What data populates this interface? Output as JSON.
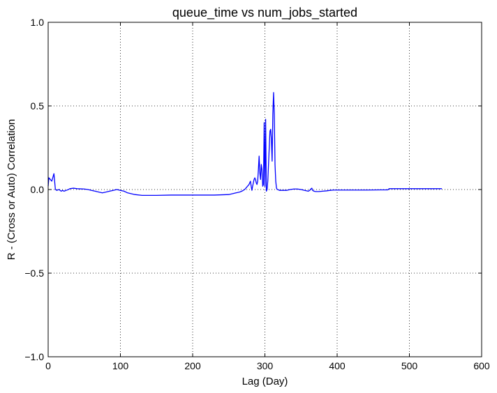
{
  "chart_data": {
    "type": "line",
    "title": "queue_time vs num_jobs_started",
    "xlabel": "Lag (Day)",
    "ylabel": "R - (Cross or Auto) Correlation",
    "xlim": [
      0,
      600
    ],
    "ylim": [
      -1.0,
      1.0
    ],
    "xticks": [
      0,
      100,
      200,
      300,
      400,
      500,
      600
    ],
    "xtick_labels": [
      "0",
      "100",
      "200",
      "300",
      "400",
      "500",
      "600"
    ],
    "yticks": [
      -1.0,
      -0.5,
      0.0,
      0.5,
      1.0
    ],
    "ytick_labels": [
      "−1.0",
      "−0.5",
      "0.0",
      "0.5",
      "1.0"
    ],
    "grid": true,
    "line_color": "#0000ff",
    "series": [
      {
        "x": [
          0,
          1,
          3,
          5,
          7,
          8,
          10,
          12,
          15,
          18,
          20,
          22,
          25,
          28,
          30,
          35,
          40,
          45,
          50,
          55,
          60,
          65,
          70,
          75,
          80,
          85,
          90,
          95,
          100,
          105,
          110,
          115,
          120,
          130,
          150,
          170,
          200,
          230,
          250,
          255,
          260,
          265,
          268,
          270,
          272,
          274,
          276,
          278,
          280,
          281,
          282,
          283,
          284,
          285,
          286,
          287,
          288,
          289,
          290,
          291,
          292,
          293,
          294,
          295,
          296,
          297,
          298,
          299,
          300,
          301,
          302,
          303,
          304,
          305,
          306,
          307,
          308,
          309,
          310,
          311,
          312,
          313,
          314,
          315,
          316,
          317,
          318,
          320,
          325,
          330,
          335,
          340,
          345,
          350,
          355,
          360,
          362,
          364,
          365,
          366,
          368,
          370,
          375,
          380,
          385,
          390,
          395,
          400,
          420,
          440,
          460,
          470,
          472,
          480,
          500,
          520,
          545
        ],
        "y": [
          0.02,
          0.07,
          0.06,
          0.05,
          0.08,
          0.095,
          0.0,
          -0.005,
          0.0,
          -0.01,
          -0.005,
          -0.01,
          -0.005,
          0.0,
          0.005,
          0.008,
          0.005,
          0.004,
          0.003,
          0.0,
          -0.005,
          -0.01,
          -0.015,
          -0.02,
          -0.015,
          -0.01,
          -0.005,
          0.0,
          -0.005,
          -0.01,
          -0.02,
          -0.025,
          -0.03,
          -0.035,
          -0.035,
          -0.033,
          -0.033,
          -0.033,
          -0.03,
          -0.025,
          -0.02,
          -0.015,
          -0.01,
          -0.005,
          0.0,
          0.01,
          0.02,
          0.03,
          0.05,
          0.02,
          -0.005,
          0.02,
          0.04,
          0.06,
          0.07,
          0.06,
          0.04,
          0.03,
          0.05,
          0.12,
          0.2,
          0.1,
          0.06,
          0.15,
          0.12,
          0.02,
          0.03,
          0.4,
          0.02,
          0.42,
          -0.01,
          0.0,
          0.05,
          0.15,
          0.25,
          0.35,
          0.36,
          0.3,
          0.17,
          0.45,
          0.58,
          0.45,
          0.15,
          0.05,
          0.01,
          0.0,
          0.0,
          -0.005,
          -0.005,
          -0.005,
          0.0,
          0.003,
          0.003,
          0.0,
          -0.005,
          -0.01,
          -0.005,
          0.005,
          0.008,
          -0.005,
          -0.01,
          -0.012,
          -0.012,
          -0.01,
          -0.008,
          -0.005,
          -0.003,
          -0.003,
          -0.003,
          -0.003,
          -0.002,
          -0.002,
          0.005,
          0.005,
          0.005,
          0.005,
          0.005
        ]
      }
    ]
  }
}
